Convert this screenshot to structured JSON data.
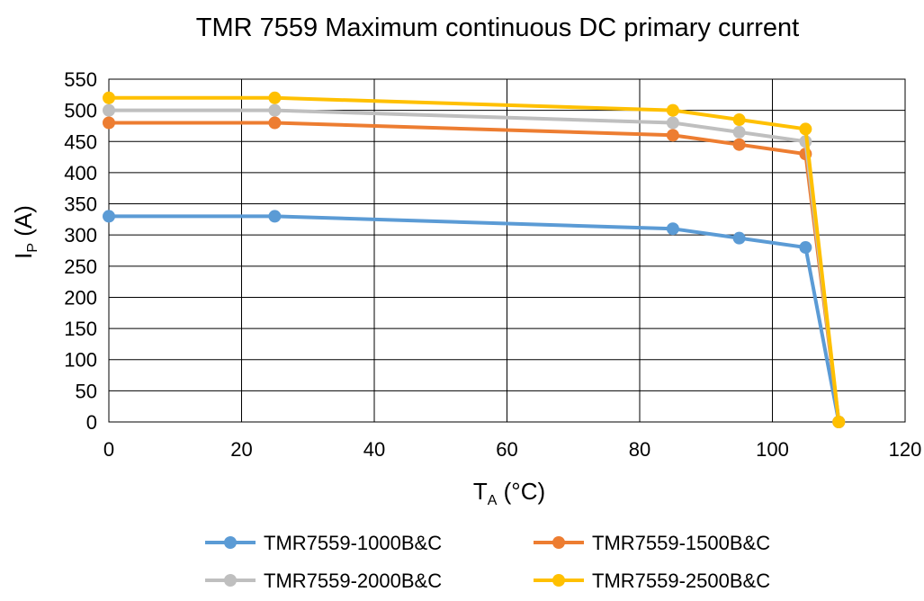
{
  "chart_data": {
    "type": "line",
    "title": "TMR 7559 Maximum continuous DC primary current",
    "xlabel": {
      "main": "T",
      "sub": "A",
      "suffix": " (°C)"
    },
    "ylabel": {
      "main": "I",
      "sub": "P",
      "suffix": " (A)"
    },
    "xlim": [
      0,
      120
    ],
    "ylim": [
      0,
      550
    ],
    "xticks": [
      0,
      20,
      40,
      60,
      80,
      100,
      120
    ],
    "yticks": [
      0,
      50,
      100,
      150,
      200,
      250,
      300,
      350,
      400,
      450,
      500,
      550
    ],
    "grid": true,
    "legend_position": "bottom",
    "series": [
      {
        "name": "TMR7559-1000B&C",
        "color": "#5B9BD5",
        "x": [
          0,
          25,
          85,
          95,
          105,
          110
        ],
        "y": [
          330,
          330,
          310,
          295,
          280,
          0
        ]
      },
      {
        "name": "TMR7559-1500B&C",
        "color": "#ED7D31",
        "x": [
          0,
          25,
          85,
          95,
          105,
          110
        ],
        "y": [
          480,
          480,
          460,
          445,
          430,
          0
        ]
      },
      {
        "name": "TMR7559-2000B&C",
        "color": "#BFBFBF",
        "x": [
          0,
          25,
          85,
          95,
          105,
          110
        ],
        "y": [
          500,
          500,
          480,
          465,
          450,
          0
        ]
      },
      {
        "name": "TMR7559-2500B&C",
        "color": "#FFC000",
        "x": [
          0,
          25,
          85,
          95,
          105,
          110
        ],
        "y": [
          520,
          520,
          500,
          485,
          470,
          0
        ]
      }
    ]
  }
}
